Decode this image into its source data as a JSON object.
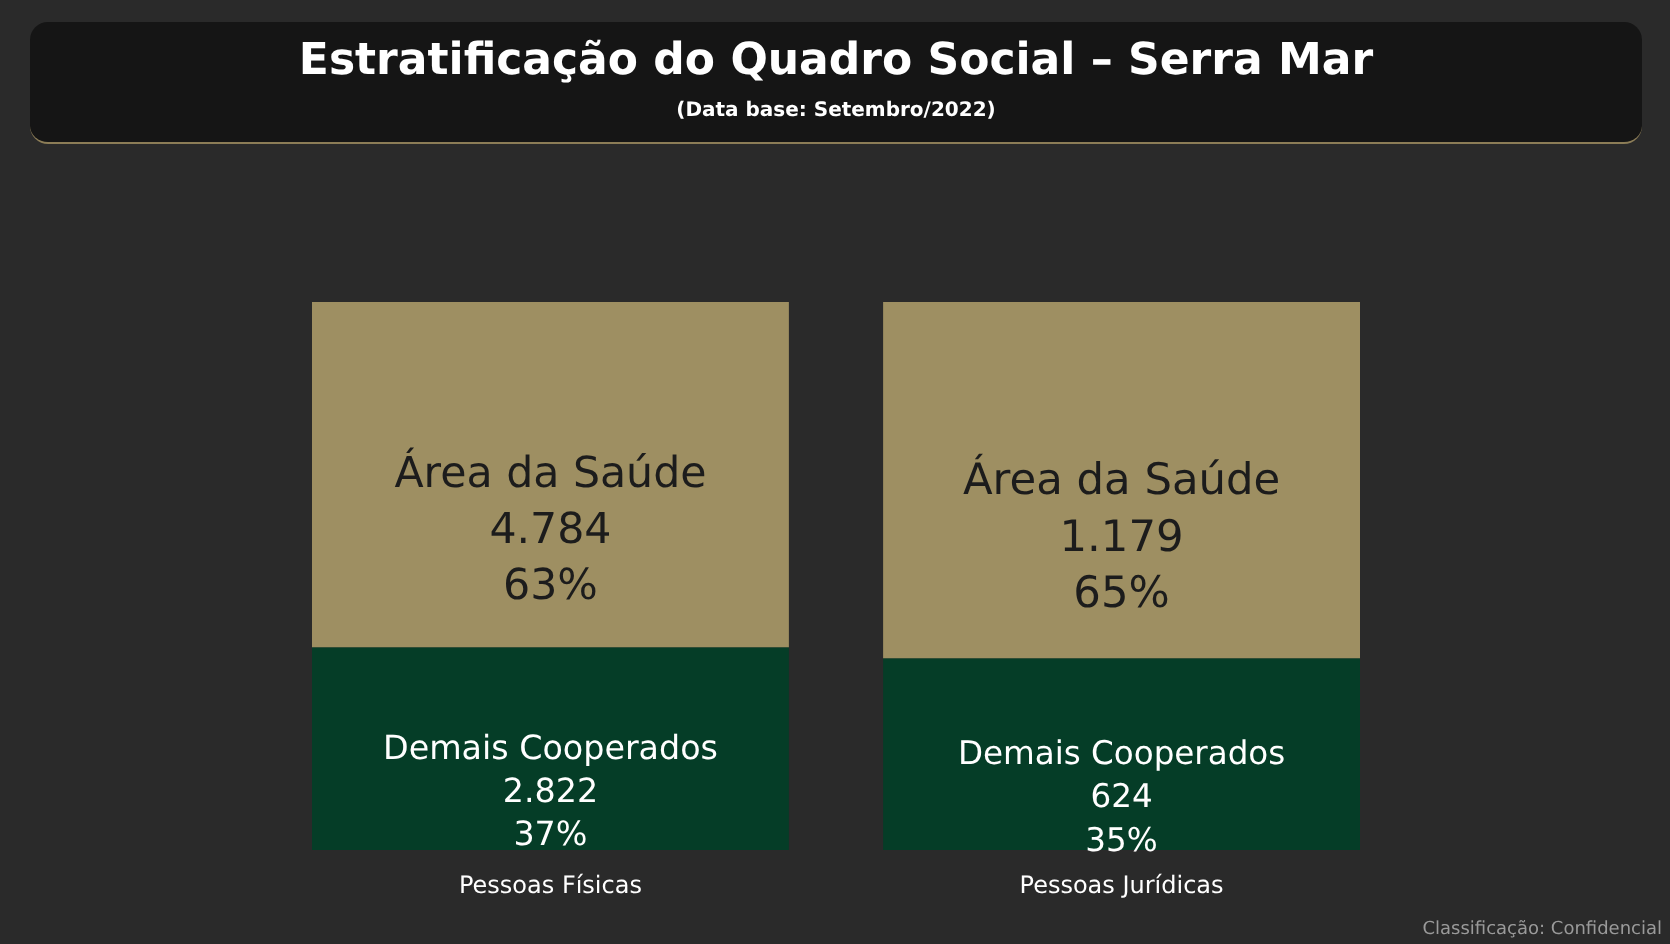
{
  "chart_data": {
    "type": "bar",
    "title": "Estratificação do Quadro Social – Serra Mar",
    "subtitle": "(Data base: Setembro/2022)",
    "stacked": true,
    "categories": [
      "Pessoas Físicas",
      "Pessoas Jurídicas"
    ],
    "series": [
      {
        "name": "Demais Cooperados",
        "color": "#053d27",
        "values": [
          37,
          35
        ],
        "value_labels": [
          "2.822\n37%",
          "624\n35%"
        ]
      },
      {
        "name": "Área da Saúde",
        "color": "#9e8f62",
        "values": [
          63,
          65
        ],
        "value_labels": [
          "4.784\n63%",
          "1.179\n65%"
        ]
      }
    ],
    "annotations": [
      "Classificação: Confidencial"
    ]
  }
}
